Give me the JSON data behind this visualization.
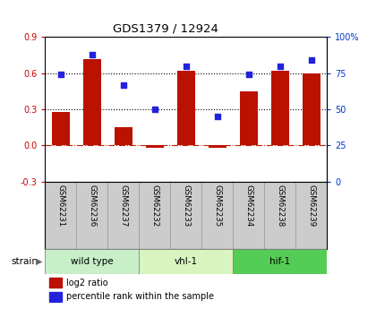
{
  "title": "GDS1379 / 12924",
  "samples": [
    "GSM62231",
    "GSM62236",
    "GSM62237",
    "GSM62232",
    "GSM62233",
    "GSM62235",
    "GSM62234",
    "GSM62238",
    "GSM62239"
  ],
  "log2_ratio": [
    0.28,
    0.72,
    0.15,
    -0.02,
    0.62,
    -0.02,
    0.45,
    0.62,
    0.6
  ],
  "percentile": [
    74,
    88,
    67,
    50,
    80,
    45,
    74,
    80,
    84
  ],
  "groups": [
    {
      "label": "wild type",
      "start": 0,
      "end": 3,
      "color": "#c8efc8"
    },
    {
      "label": "vhl-1",
      "start": 3,
      "end": 6,
      "color": "#d8f5c0"
    },
    {
      "label": "hif-1",
      "start": 6,
      "end": 9,
      "color": "#55cc55"
    }
  ],
  "bar_color": "#bb1100",
  "dot_color": "#2222dd",
  "ylim_left": [
    -0.3,
    0.9
  ],
  "ylim_right": [
    0,
    100
  ],
  "yticks_left": [
    -0.3,
    0.0,
    0.3,
    0.6,
    0.9
  ],
  "yticks_right": [
    0,
    25,
    50,
    75,
    100
  ],
  "hline_dotted": [
    0.3,
    0.6
  ],
  "hline_zero_color": "#bb2200",
  "label_log2": "log2 ratio",
  "label_percentile": "percentile rank within the sample",
  "strain_label": "strain",
  "bg_color": "#ffffff",
  "tick_label_color_left": "#cc0000",
  "tick_label_color_right": "#0033cc",
  "bar_width": 0.55,
  "sample_box_color": "#cccccc",
  "sample_box_edge": "#999999"
}
